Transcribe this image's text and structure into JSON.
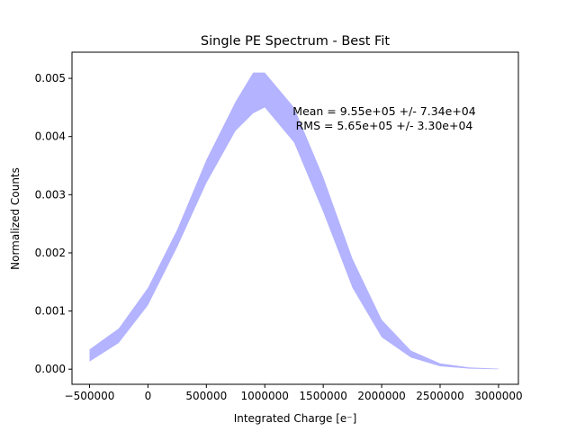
{
  "chart_data": {
    "type": "area",
    "title": "Single PE Spectrum - Best Fit",
    "xlabel": "Integrated Charge [e⁻]",
    "ylabel": "Normalized Counts",
    "xlim": [
      -650000,
      3170000
    ],
    "ylim": [
      -0.00026,
      0.00545
    ],
    "xticks": [
      -500000,
      0,
      500000,
      1000000,
      1500000,
      2000000,
      2500000,
      3000000
    ],
    "xtick_labels": [
      "−500000",
      "0",
      "500000",
      "1000000",
      "1500000",
      "2000000",
      "2500000",
      "3000000"
    ],
    "yticks": [
      0.0,
      0.001,
      0.002,
      0.003,
      0.004,
      0.005
    ],
    "ytick_labels": [
      "0.000",
      "0.001",
      "0.002",
      "0.003",
      "0.004",
      "0.005"
    ],
    "grid": false,
    "band_color": "#b3b3ff",
    "series": [
      {
        "x": [
          -500000,
          -250000,
          0,
          250000,
          500000,
          750000,
          900000,
          1000000,
          1250000,
          1500000,
          1750000,
          2000000,
          2250000,
          2500000,
          2750000,
          3000000
        ],
        "lower": [
          0.00013,
          0.00045,
          0.0011,
          0.0021,
          0.0032,
          0.0041,
          0.0044,
          0.0045,
          0.0039,
          0.0027,
          0.0014,
          0.00055,
          0.0002,
          5e-05,
          1e-05,
          0.0
        ],
        "upper": [
          0.00034,
          0.0007,
          0.0014,
          0.0024,
          0.0036,
          0.0046,
          0.0051,
          0.0051,
          0.0045,
          0.0033,
          0.0019,
          0.00085,
          0.00032,
          0.0001,
          3e-05,
          1e-05
        ]
      }
    ],
    "annotations": [
      "Mean = 9.55e+05 +/- 7.34e+04",
      "RMS = 5.65e+05 +/- 3.30e+04"
    ]
  }
}
